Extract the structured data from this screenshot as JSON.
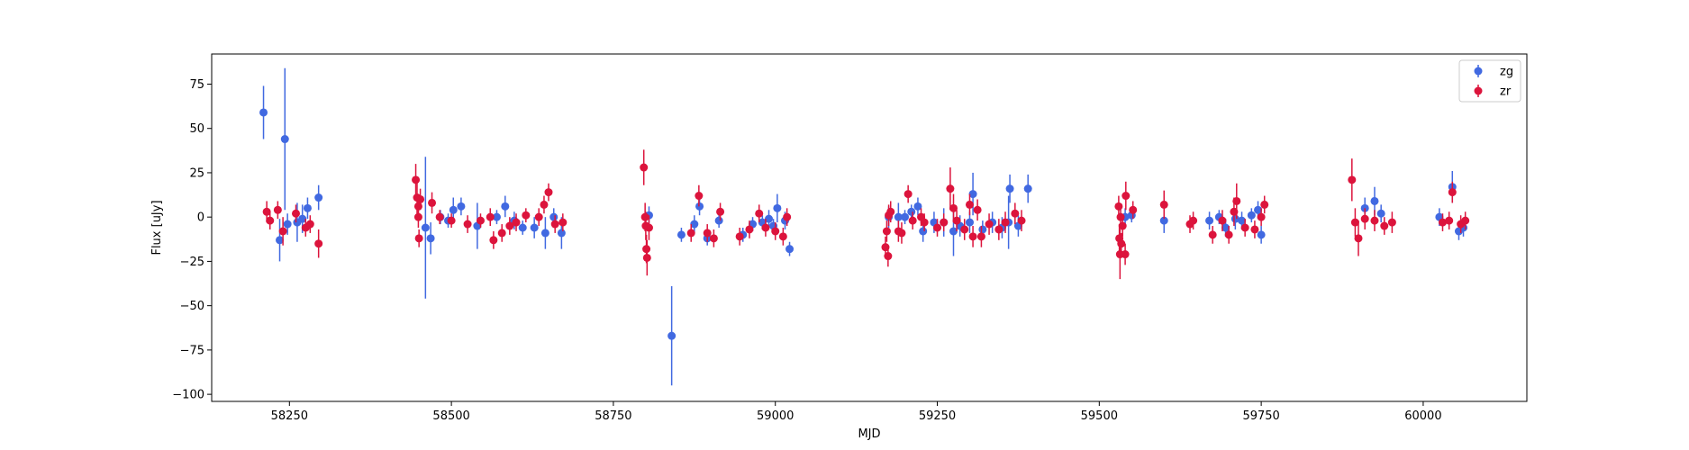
{
  "chart_data": {
    "type": "scatter",
    "title": "",
    "xlabel": "MJD",
    "ylabel": "Flux [uJy]",
    "xlim": [
      58130,
      60160
    ],
    "ylim": [
      -104,
      92
    ],
    "xticks": [
      58250,
      58500,
      58750,
      59000,
      59250,
      59500,
      59750,
      60000
    ],
    "yticks": [
      -100,
      -75,
      -50,
      -25,
      0,
      25,
      50,
      75
    ],
    "legend": {
      "placement": "top-right",
      "entries": [
        "zg",
        "zr"
      ]
    },
    "series": [
      {
        "name": "zg",
        "color": "#4169e1",
        "points": [
          [
            58210,
            59,
            15
          ],
          [
            58235,
            -13,
            12
          ],
          [
            58243,
            44,
            40
          ],
          [
            58247,
            -4,
            6
          ],
          [
            58262,
            -3,
            11
          ],
          [
            58270,
            -1,
            8
          ],
          [
            58278,
            5,
            6
          ],
          [
            58295,
            11,
            7
          ],
          [
            58460,
            -6,
            40
          ],
          [
            58468,
            -12,
            9
          ],
          [
            58483,
            0,
            4
          ],
          [
            58495,
            -2,
            4
          ],
          [
            58503,
            4,
            7
          ],
          [
            58515,
            6,
            5
          ],
          [
            58540,
            -5,
            13
          ],
          [
            58570,
            0,
            4
          ],
          [
            58583,
            6,
            6
          ],
          [
            58597,
            -2,
            5
          ],
          [
            58610,
            -6,
            4
          ],
          [
            58628,
            -6,
            6
          ],
          [
            58645,
            -9,
            9
          ],
          [
            58658,
            0,
            5
          ],
          [
            58670,
            -9,
            9
          ],
          [
            58805,
            1,
            5
          ],
          [
            58840,
            -67,
            28
          ],
          [
            58855,
            -10,
            4
          ],
          [
            58875,
            -4,
            5
          ],
          [
            58883,
            6,
            5
          ],
          [
            58895,
            -12,
            4
          ],
          [
            58913,
            -2,
            4
          ],
          [
            58950,
            -10,
            4
          ],
          [
            58965,
            -4,
            4
          ],
          [
            58980,
            -3,
            4
          ],
          [
            58990,
            -1,
            5
          ],
          [
            58997,
            -5,
            4
          ],
          [
            59003,
            5,
            8
          ],
          [
            59015,
            -2,
            5
          ],
          [
            59022,
            -18,
            4
          ],
          [
            59175,
            0,
            6
          ],
          [
            59190,
            0,
            8
          ],
          [
            59200,
            0,
            4
          ],
          [
            59210,
            3,
            4
          ],
          [
            59220,
            6,
            5
          ],
          [
            59228,
            -8,
            6
          ],
          [
            59245,
            -3,
            6
          ],
          [
            59260,
            -3,
            8
          ],
          [
            59275,
            -8,
            14
          ],
          [
            59285,
            -5,
            6
          ],
          [
            59300,
            -3,
            6
          ],
          [
            59305,
            13,
            12
          ],
          [
            59320,
            -7,
            5
          ],
          [
            59335,
            -3,
            6
          ],
          [
            59350,
            -6,
            6
          ],
          [
            59360,
            -3,
            15
          ],
          [
            59362,
            16,
            8
          ],
          [
            59375,
            -5,
            6
          ],
          [
            59390,
            16,
            8
          ],
          [
            59540,
            0,
            5
          ],
          [
            59550,
            1,
            4
          ],
          [
            59600,
            -2,
            7
          ],
          [
            59670,
            -2,
            5
          ],
          [
            59685,
            0,
            4
          ],
          [
            59695,
            -6,
            5
          ],
          [
            59710,
            -1,
            6
          ],
          [
            59720,
            -2,
            5
          ],
          [
            59735,
            1,
            4
          ],
          [
            59745,
            4,
            5
          ],
          [
            59750,
            -10,
            5
          ],
          [
            59910,
            5,
            6
          ],
          [
            59925,
            9,
            8
          ],
          [
            59935,
            2,
            5
          ],
          [
            60025,
            0,
            5
          ],
          [
            60045,
            17,
            9
          ],
          [
            60055,
            -8,
            5
          ],
          [
            60062,
            -6,
            5
          ]
        ]
      },
      {
        "name": "zr",
        "color": "#dc143c",
        "points": [
          [
            58215,
            3,
            6
          ],
          [
            58220,
            -2,
            5
          ],
          [
            58232,
            4,
            5
          ],
          [
            58240,
            -8,
            8
          ],
          [
            58260,
            2,
            5
          ],
          [
            58275,
            -6,
            5
          ],
          [
            58282,
            -4,
            5
          ],
          [
            58295,
            -15,
            8
          ],
          [
            58445,
            21,
            9
          ],
          [
            58447,
            11,
            9
          ],
          [
            58449,
            6,
            5
          ],
          [
            58449,
            0,
            6
          ],
          [
            58450,
            -12,
            5
          ],
          [
            58452,
            10,
            6
          ],
          [
            58470,
            8,
            6
          ],
          [
            58482,
            0,
            4
          ],
          [
            58500,
            -2,
            4
          ],
          [
            58525,
            -4,
            5
          ],
          [
            58545,
            -2,
            4
          ],
          [
            58560,
            0,
            5
          ],
          [
            58565,
            -13,
            5
          ],
          [
            58578,
            -9,
            5
          ],
          [
            58590,
            -5,
            5
          ],
          [
            58600,
            -3,
            5
          ],
          [
            58615,
            1,
            4
          ],
          [
            58635,
            0,
            5
          ],
          [
            58643,
            7,
            5
          ],
          [
            58650,
            14,
            5
          ],
          [
            58660,
            -4,
            5
          ],
          [
            58672,
            -3,
            5
          ],
          [
            58797,
            28,
            10
          ],
          [
            58799,
            0,
            8
          ],
          [
            58800,
            -5,
            8
          ],
          [
            58801,
            -18,
            8
          ],
          [
            58802,
            -23,
            10
          ],
          [
            58805,
            -6,
            7
          ],
          [
            58870,
            -9,
            5
          ],
          [
            58882,
            12,
            6
          ],
          [
            58895,
            -9,
            5
          ],
          [
            58905,
            -12,
            5
          ],
          [
            58915,
            3,
            5
          ],
          [
            58945,
            -11,
            5
          ],
          [
            58960,
            -7,
            5
          ],
          [
            58975,
            2,
            5
          ],
          [
            58985,
            -6,
            5
          ],
          [
            59000,
            -8,
            5
          ],
          [
            59012,
            -11,
            5
          ],
          [
            59018,
            0,
            5
          ],
          [
            59170,
            -17,
            6
          ],
          [
            59172,
            -8,
            6
          ],
          [
            59174,
            -22,
            6
          ],
          [
            59175,
            1,
            6
          ],
          [
            59178,
            3,
            6
          ],
          [
            59190,
            -8,
            6
          ],
          [
            59195,
            -9,
            6
          ],
          [
            59205,
            13,
            5
          ],
          [
            59212,
            -2,
            5
          ],
          [
            59225,
            0,
            5
          ],
          [
            59230,
            -3,
            5
          ],
          [
            59250,
            -6,
            5
          ],
          [
            59260,
            -3,
            5
          ],
          [
            59270,
            16,
            12
          ],
          [
            59275,
            5,
            8
          ],
          [
            59280,
            -2,
            6
          ],
          [
            59292,
            -7,
            6
          ],
          [
            59300,
            7,
            6
          ],
          [
            59305,
            -11,
            6
          ],
          [
            59312,
            4,
            6
          ],
          [
            59318,
            -11,
            6
          ],
          [
            59330,
            -4,
            6
          ],
          [
            59345,
            -7,
            6
          ],
          [
            59355,
            -3,
            6
          ],
          [
            59370,
            2,
            6
          ],
          [
            59380,
            -2,
            6
          ],
          [
            59530,
            6,
            6
          ],
          [
            59531,
            -12,
            8
          ],
          [
            59532,
            -21,
            14
          ],
          [
            59533,
            0,
            6
          ],
          [
            59534,
            -15,
            6
          ],
          [
            59536,
            -5,
            6
          ],
          [
            59540,
            -21,
            6
          ],
          [
            59541,
            12,
            8
          ],
          [
            59552,
            4,
            5
          ],
          [
            59600,
            7,
            8
          ],
          [
            59640,
            -4,
            5
          ],
          [
            59645,
            -2,
            5
          ],
          [
            59675,
            -10,
            5
          ],
          [
            59690,
            -2,
            6
          ],
          [
            59700,
            -10,
            5
          ],
          [
            59708,
            3,
            8
          ],
          [
            59712,
            9,
            10
          ],
          [
            59725,
            -6,
            5
          ],
          [
            59740,
            -7,
            5
          ],
          [
            59750,
            0,
            5
          ],
          [
            59755,
            7,
            5
          ],
          [
            59890,
            21,
            12
          ],
          [
            59895,
            -3,
            8
          ],
          [
            59900,
            -12,
            10
          ],
          [
            59910,
            -1,
            6
          ],
          [
            59925,
            -2,
            6
          ],
          [
            59940,
            -5,
            5
          ],
          [
            59952,
            -3,
            6
          ],
          [
            60030,
            -3,
            5
          ],
          [
            60040,
            -2,
            5
          ],
          [
            60045,
            14,
            6
          ],
          [
            60058,
            -4,
            5
          ],
          [
            60065,
            -2,
            5
          ]
        ]
      }
    ]
  }
}
